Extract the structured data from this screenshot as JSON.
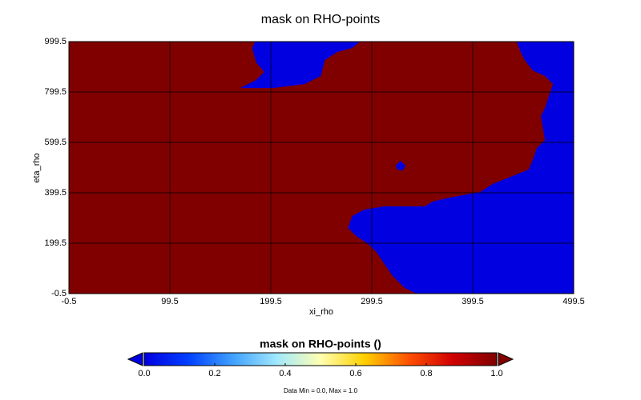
{
  "chart_data": {
    "type": "heatmap",
    "title": "mask on RHO-points",
    "x_label": "xi_rho",
    "y_label": "eta_rho",
    "xlim": [
      -0.5,
      499.5
    ],
    "ylim": [
      -0.5,
      999.5
    ],
    "xticks": [
      -0.5,
      99.5,
      199.5,
      299.5,
      399.5,
      499.5
    ],
    "yticks": [
      -0.5,
      199.5,
      399.5,
      599.5,
      799.5,
      999.5
    ],
    "grid": true,
    "background_value": 1,
    "regions": [
      {
        "value": 0,
        "x": [
          344,
          332,
          320,
          312,
          304,
          296,
          284,
          276,
          280,
          292,
          312,
          352,
          360,
          376,
          407,
          419,
          439,
          455,
          459,
          463,
          471,
          469,
          467,
          471,
          475,
          479,
          471,
          459,
          451,
          447,
          443,
          499.5,
          499.5
        ],
        "y": [
          -0.5,
          22,
          70,
          117,
          165,
          196,
          228,
          260,
          307,
          333,
          346,
          346,
          365,
          380,
          403,
          434,
          466,
          492,
          530,
          577,
          609,
          657,
          704,
          736,
          784,
          831,
          863,
          885,
          926,
          958,
          999.5,
          999.5,
          -0.5
        ]
      },
      {
        "value": 0,
        "x": [
          169,
          185,
          193,
          185,
          181,
          184,
          288,
          280,
          265,
          253,
          249,
          233,
          201
        ],
        "y": [
          815,
          847,
          879,
          917,
          974,
          999.5,
          999.5,
          974,
          958,
          926,
          863,
          831,
          815
        ]
      },
      {
        "value": 0,
        "x": [
          323,
          328,
          333,
          330,
          325
        ],
        "y": [
          507,
          526,
          507,
          488,
          491
        ]
      }
    ],
    "colorbar": {
      "title": "mask on RHO-points ()",
      "lim": [
        0,
        1
      ],
      "ticks": [
        {
          "value": 0,
          "label": "0.0"
        },
        {
          "value": 0.2,
          "label": "0.2"
        },
        {
          "value": 0.4,
          "label": "0.4"
        },
        {
          "value": 0.6,
          "label": "0.6"
        },
        {
          "value": 0.8,
          "label": "0.8"
        },
        {
          "value": 1,
          "label": "1.0"
        }
      ],
      "colormap": [
        "#0000e0",
        "#0040ff",
        "#40a0ff",
        "#a0e8ff",
        "#ffffb0",
        "#ffd000",
        "#ff5000",
        "#d00000",
        "#800000"
      ]
    },
    "note": "Data Min = 0.0, Max = 1.0"
  }
}
